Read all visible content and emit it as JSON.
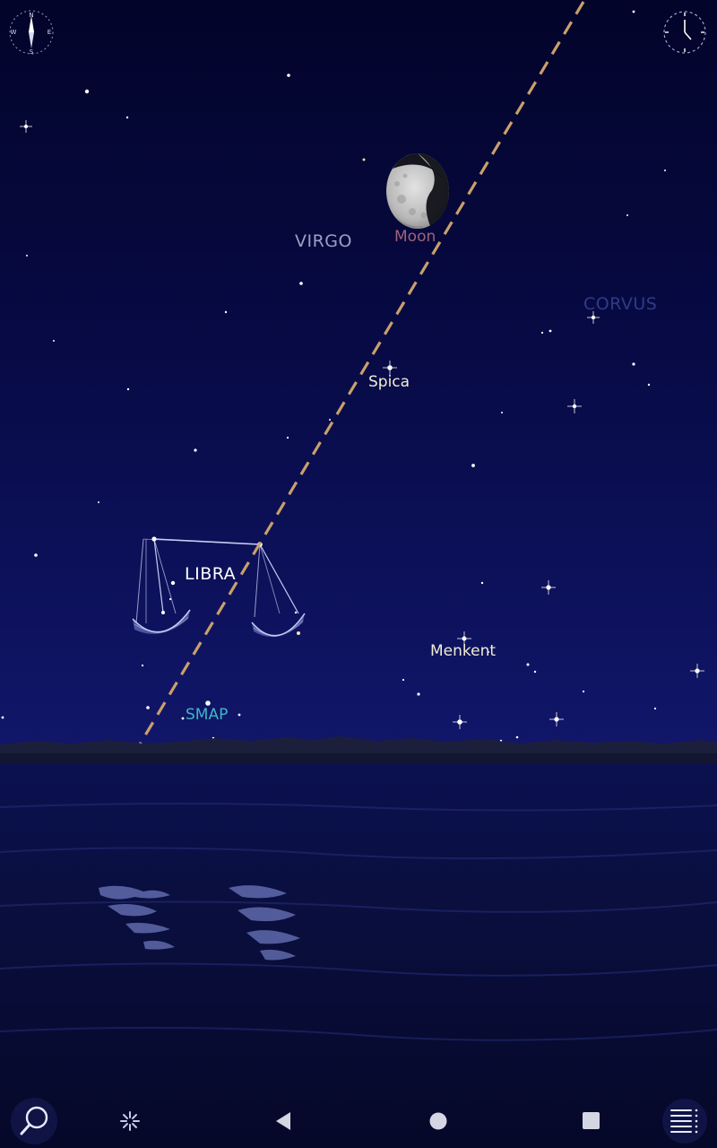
{
  "sky": {
    "constellations": {
      "virgo": "VIRGO",
      "corvus": "CORVUS",
      "libra": "LIBRA"
    },
    "objects": {
      "moon": "Moon",
      "spica": "Spica",
      "menkent": "Menkent",
      "smap": "SMAP"
    }
  },
  "colors": {
    "sky_top": "#03042a",
    "sky_mid": "#0a0d55",
    "ecliptic": "#c9a06a",
    "moon_label": "#a0627a",
    "virgo_label": "#9c9fc4",
    "corvus_label": "#2f3b86",
    "star_label": "#f1ecd2",
    "smap_label": "#3fb7c6"
  },
  "controls": {
    "compass": "compass-icon",
    "clock": "clock-icon",
    "search": "search-icon",
    "sparkle": "sparkle-icon",
    "menu": "menu-icon"
  }
}
